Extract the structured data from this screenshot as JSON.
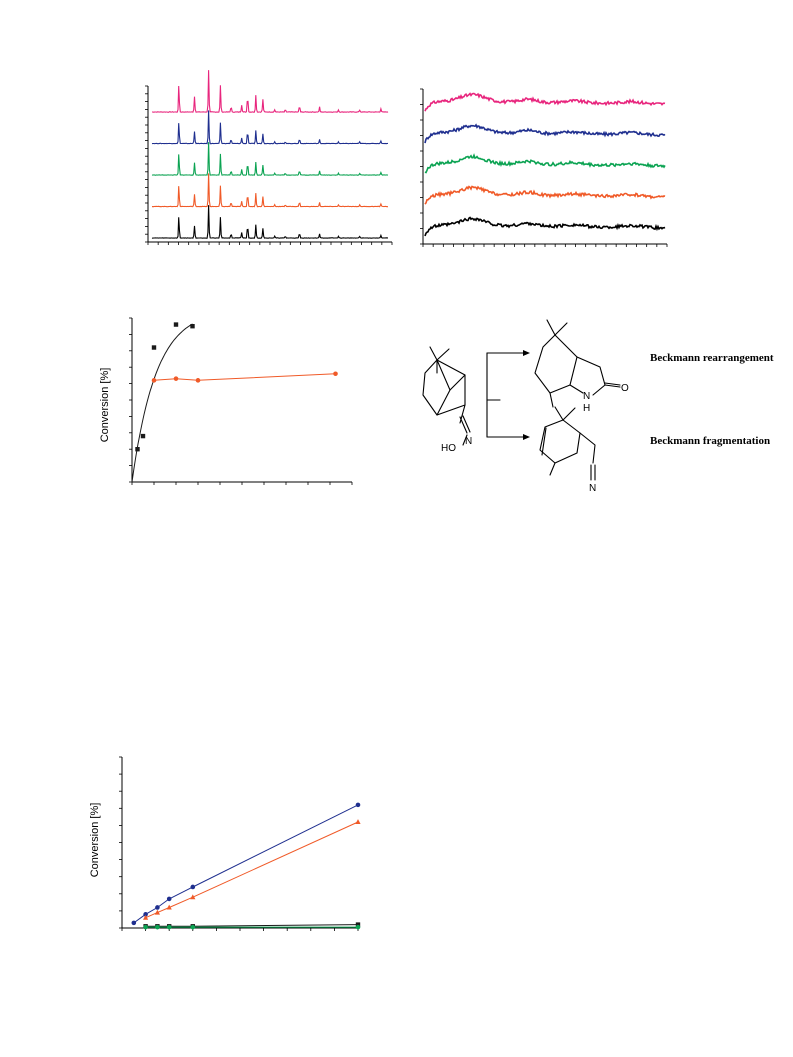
{
  "chart_data": [
    {
      "type": "line",
      "panel": "xrd-patterns",
      "series": [
        {
          "color": "#e8257d",
          "offset": 4
        },
        {
          "color": "#1f2f8f",
          "offset": 3
        },
        {
          "color": "#0ba352",
          "offset": 2
        },
        {
          "color": "#f05a28",
          "offset": 1
        },
        {
          "color": "#000000",
          "offset": 0
        }
      ],
      "peaks": [
        [
          0.114,
          1.0
        ],
        [
          0.18,
          0.55
        ],
        [
          0.24,
          1.5
        ],
        [
          0.29,
          0.95
        ],
        [
          0.335,
          0.2
        ],
        [
          0.38,
          0.25
        ],
        [
          0.405,
          0.6
        ],
        [
          0.44,
          0.6
        ],
        [
          0.47,
          0.45
        ],
        [
          0.52,
          0.08
        ],
        [
          0.565,
          0.08
        ],
        [
          0.625,
          0.22
        ],
        [
          0.71,
          0.18
        ],
        [
          0.79,
          0.08
        ],
        [
          0.88,
          0.07
        ],
        [
          0.97,
          0.12
        ]
      ]
    },
    {
      "type": "line",
      "panel": "broad-patterns",
      "series": [
        {
          "color": "#e8257d",
          "offset": 4
        },
        {
          "color": "#1f2f8f",
          "offset": 3
        },
        {
          "color": "#0ba352",
          "offset": 2
        },
        {
          "color": "#f05a28",
          "offset": 1
        },
        {
          "color": "#000000",
          "offset": 0
        }
      ]
    },
    {
      "type": "scatter",
      "panel": "conversion-1",
      "ylabel": "Conversion [%]",
      "series": [
        {
          "color": "#1a1a1a",
          "marker": "square",
          "x": [
            0.5,
            1,
            2,
            4,
            5.5
          ],
          "y": [
            20,
            28,
            82,
            96,
            95
          ],
          "fit": true
        },
        {
          "color": "#f05a28",
          "marker": "circle",
          "x": [
            2,
            4,
            6,
            18.5
          ],
          "y": [
            62,
            63,
            62,
            66
          ]
        }
      ],
      "xlim": [
        0,
        20
      ],
      "ylim": [
        0,
        100
      ]
    },
    {
      "type": "scatter",
      "panel": "conversion-2",
      "ylabel": "Conversion [%]",
      "series": [
        {
          "color": "#1f2f8f",
          "marker": "circle",
          "x": [
            1,
            2,
            3,
            4,
            6,
            20
          ],
          "y": [
            3,
            8,
            12,
            17,
            24,
            72
          ]
        },
        {
          "color": "#f05a28",
          "marker": "triangle",
          "x": [
            2,
            3,
            4,
            6,
            20
          ],
          "y": [
            6,
            9,
            12,
            18,
            62
          ]
        },
        {
          "color": "#1a1a1a",
          "marker": "square",
          "x": [
            2,
            3,
            4,
            6,
            20
          ],
          "y": [
            1,
            1,
            1,
            1,
            2
          ]
        },
        {
          "color": "#0ba352",
          "marker": "circle",
          "x": [
            2,
            3,
            4,
            6,
            20
          ],
          "y": [
            0.5,
            0.5,
            0.5,
            0.5,
            0.5
          ]
        }
      ],
      "xlim": [
        0,
        20
      ],
      "ylim": [
        0,
        100
      ]
    }
  ],
  "scheme": {
    "rearrangement_label": "Beckmann rearrangement",
    "fragmentation_label": "Beckmann fragmentation",
    "atoms": {
      "oxime_ho": "HO",
      "oxime_n": "N",
      "lactam_n": "N",
      "lactam_h": "H",
      "lactam_o": "O",
      "nitrile_n": "N"
    }
  }
}
